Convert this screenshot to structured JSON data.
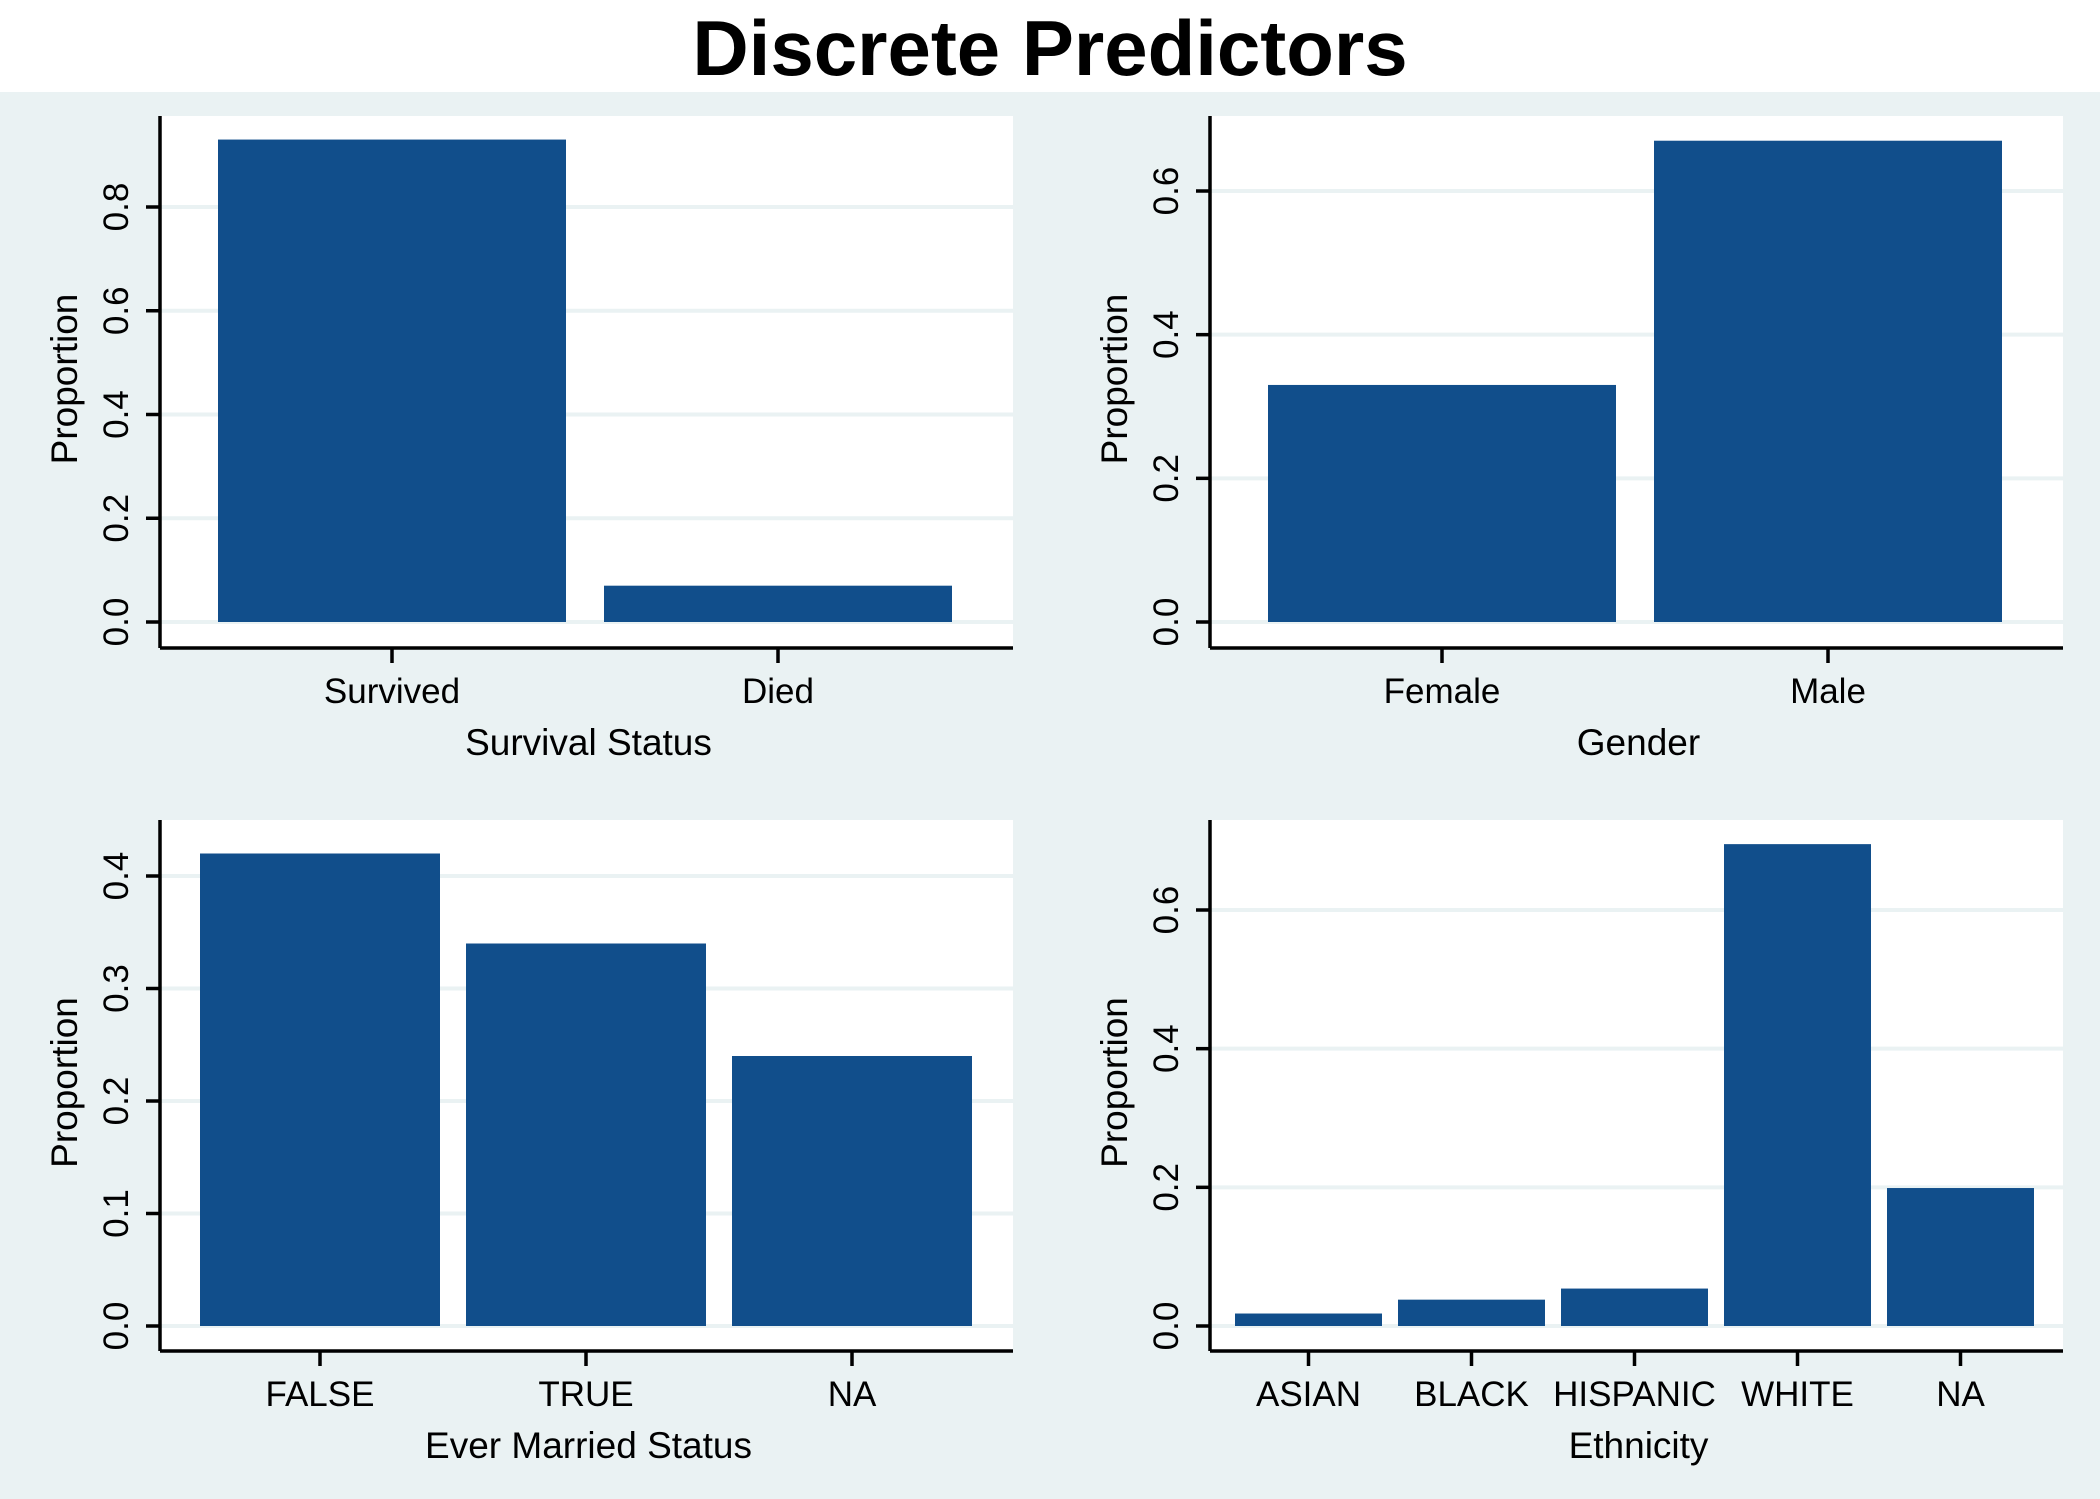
{
  "title": "Discrete Predictors",
  "colors": {
    "bar": "#114e8b",
    "plot_background": "#ffffff",
    "outer_background": "#eaf2f3",
    "grid": "#eaf2f3"
  },
  "chart_data": [
    {
      "type": "bar",
      "categories": [
        "Survived",
        "Died"
      ],
      "values": [
        0.93,
        0.07
      ],
      "xlabel": "Survival Status",
      "ylabel": "Proportion",
      "ylim": [
        0,
        0.95
      ],
      "yticks": [
        0,
        0.2,
        0.4,
        0.6,
        0.8
      ],
      "ytick_labels": [
        "0.0",
        "0.2",
        "0.4",
        "0.6",
        "0.8"
      ],
      "grid": true
    },
    {
      "type": "bar",
      "categories": [
        "Female",
        "Male"
      ],
      "values": [
        0.33,
        0.67
      ],
      "xlabel": "Gender",
      "ylabel": "Proportion",
      "ylim": [
        0,
        0.7
      ],
      "yticks": [
        0,
        0.2,
        0.4,
        0.6
      ],
      "ytick_labels": [
        "0.0",
        "0.2",
        "0.4",
        "0.6"
      ],
      "grid": true
    },
    {
      "type": "bar",
      "categories": [
        "FALSE",
        "TRUE",
        "NA"
      ],
      "values": [
        0.42,
        0.34,
        0.24
      ],
      "xlabel": "Ever Married Status",
      "ylabel": "Proportion",
      "ylim": [
        0,
        0.44
      ],
      "yticks": [
        0,
        0.1,
        0.2,
        0.3,
        0.4
      ],
      "ytick_labels": [
        "0.0",
        "0.1",
        "0.2",
        "0.3",
        "0.4"
      ],
      "grid": true
    },
    {
      "type": "bar",
      "categories": [
        "ASIAN",
        "BLACK",
        "HISPANIC",
        "WHITE",
        "NA"
      ],
      "values": [
        0.018,
        0.038,
        0.054,
        0.695,
        0.199
      ],
      "xlabel": "Ethnicity",
      "ylabel": "Proportion",
      "ylim": [
        0,
        0.73
      ],
      "yticks": [
        0,
        0.2,
        0.4,
        0.6
      ],
      "ytick_labels": [
        "0.0",
        "0.2",
        "0.4",
        "0.6"
      ],
      "grid": true
    }
  ]
}
